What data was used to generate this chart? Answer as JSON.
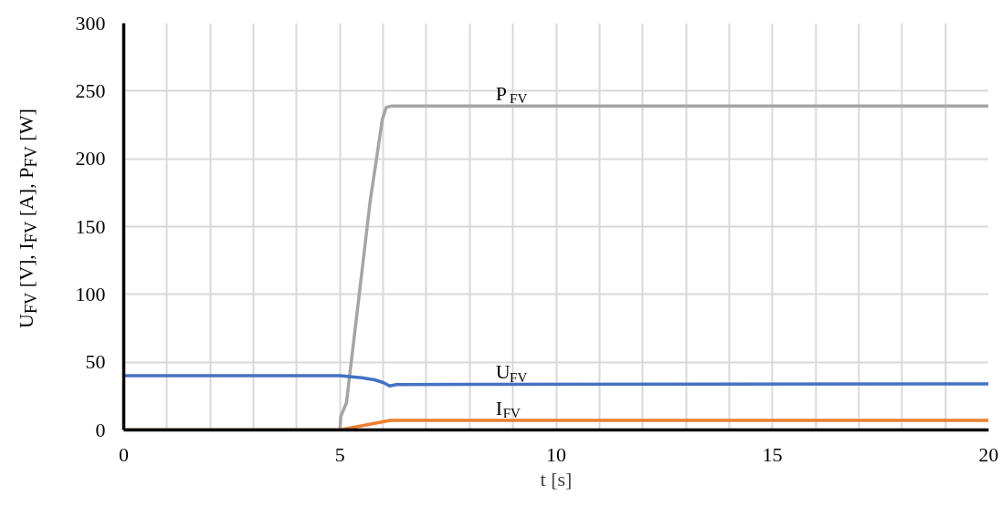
{
  "chart_data": {
    "type": "line",
    "xlabel": "t [s]",
    "ylabel": "U$_{FV}$ [V], I$_{FV}$ [A], P$_{FV}$ [W]",
    "x": [
      0,
      5.0,
      5.5,
      5.8,
      6.0,
      6.15,
      6.3,
      20
    ],
    "series": [
      {
        "name": "P$_{FV}$",
        "color": "#a5a5a5",
        "x": [
          0,
          5.0,
          5.02,
          5.15,
          5.42,
          5.7,
          5.98,
          6.07,
          6.2,
          20
        ],
        "values": [
          0,
          0,
          10,
          20,
          93,
          169,
          229,
          238,
          239,
          239
        ]
      },
      {
        "name": "U$_{FV}$",
        "color": "#4472c4",
        "values": [
          40,
          40,
          38.5,
          37,
          35,
          32.5,
          33.5,
          34
        ]
      },
      {
        "name": "I$_{FV}$",
        "color": "#ed7d31",
        "x": [
          0,
          5.0,
          6.16,
          20
        ],
        "values": [
          0,
          0,
          7,
          7
        ]
      }
    ],
    "xlim": [
      0,
      20
    ],
    "ylim": [
      0,
      300
    ],
    "xticks": [
      0,
      {
        "value": 1,
        "label": null
      },
      {
        "value": 2,
        "label": null
      },
      {
        "value": 3,
        "label": null
      },
      {
        "value": 4,
        "label": null
      },
      5,
      {
        "value": 6,
        "label": null
      },
      {
        "value": 7,
        "label": null
      },
      {
        "value": 8,
        "label": null
      },
      {
        "value": 9,
        "label": null
      },
      10,
      {
        "value": 11,
        "label": null
      },
      {
        "value": 12,
        "label": null
      },
      {
        "value": 13,
        "label": null
      },
      {
        "value": 14,
        "label": null
      },
      15,
      {
        "value": 16,
        "label": null
      },
      {
        "value": 17,
        "label": null
      },
      {
        "value": 18,
        "label": null
      },
      {
        "value": 19,
        "label": null
      },
      20
    ],
    "yticks": [
      0,
      50,
      100,
      150,
      200,
      250,
      300
    ],
    "grid": true,
    "legend": false,
    "line_style": "solid",
    "marker": "none"
  }
}
